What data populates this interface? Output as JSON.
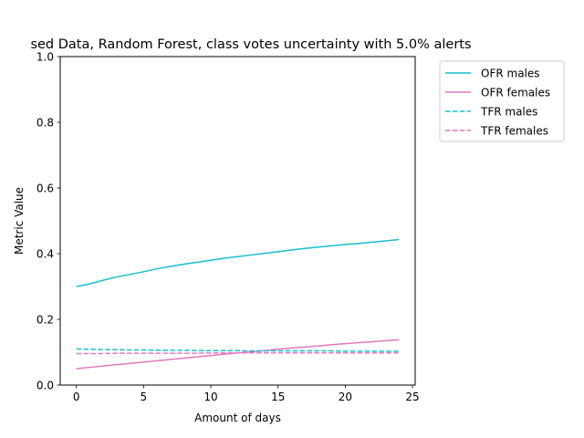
{
  "chart_data": {
    "type": "line",
    "title": "sed Data, Random Forest, class votes uncertainty with 5.0% alerts",
    "xlabel": "Amount of days",
    "ylabel": "Metric Value",
    "xlim": [
      -1.2,
      25.2
    ],
    "ylim": [
      0.0,
      1.0
    ],
    "xticks": [
      0,
      5,
      10,
      15,
      20,
      25
    ],
    "yticks": [
      0.0,
      0.2,
      0.4,
      0.6,
      0.8,
      1.0
    ],
    "xtick_labels": [
      "0",
      "5",
      "10",
      "15",
      "20",
      "25"
    ],
    "ytick_labels": [
      "0.0",
      "0.2",
      "0.4",
      "0.6",
      "0.8",
      "1.0"
    ],
    "grid": false,
    "legend_position": "outside-top-right",
    "x": [
      0,
      1,
      2,
      3,
      4,
      5,
      6,
      7,
      8,
      9,
      10,
      11,
      12,
      13,
      14,
      15,
      16,
      17,
      18,
      19,
      20,
      21,
      22,
      23,
      24
    ],
    "series": [
      {
        "name": "OFR males",
        "color": "#17becf",
        "style": "solid",
        "values": [
          0.3,
          0.308,
          0.319,
          0.329,
          0.337,
          0.345,
          0.354,
          0.361,
          0.368,
          0.374,
          0.38,
          0.386,
          0.391,
          0.396,
          0.401,
          0.406,
          0.411,
          0.416,
          0.42,
          0.424,
          0.428,
          0.431,
          0.435,
          0.439,
          0.443
        ]
      },
      {
        "name": "OFR females",
        "color": "#e377c2",
        "style": "solid",
        "values": [
          0.05,
          0.054,
          0.058,
          0.062,
          0.066,
          0.07,
          0.074,
          0.078,
          0.082,
          0.086,
          0.09,
          0.094,
          0.098,
          0.101,
          0.105,
          0.109,
          0.113,
          0.116,
          0.119,
          0.123,
          0.126,
          0.129,
          0.132,
          0.135,
          0.138
        ]
      },
      {
        "name": "TFR males",
        "color": "#17becf",
        "style": "dashed",
        "values": [
          0.11,
          0.109,
          0.108,
          0.108,
          0.107,
          0.107,
          0.106,
          0.106,
          0.106,
          0.105,
          0.105,
          0.105,
          0.105,
          0.104,
          0.104,
          0.104,
          0.104,
          0.104,
          0.104,
          0.104,
          0.103,
          0.103,
          0.103,
          0.103,
          0.103
        ]
      },
      {
        "name": "TFR females",
        "color": "#e377c2",
        "style": "dashed",
        "values": [
          0.096,
          0.096,
          0.096,
          0.097,
          0.097,
          0.097,
          0.097,
          0.097,
          0.097,
          0.097,
          0.098,
          0.098,
          0.098,
          0.098,
          0.098,
          0.098,
          0.098,
          0.098,
          0.098,
          0.098,
          0.098,
          0.098,
          0.098,
          0.098,
          0.098
        ]
      }
    ]
  }
}
